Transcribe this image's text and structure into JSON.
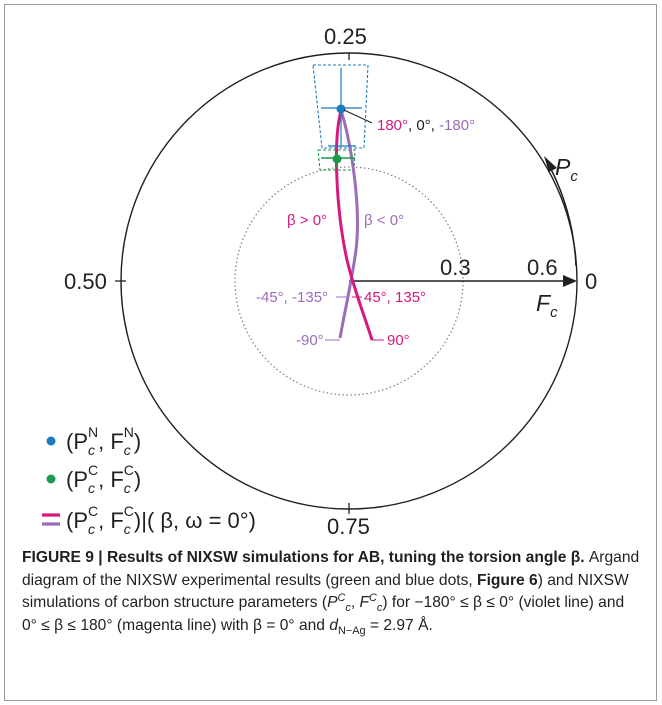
{
  "diagram": {
    "phase_labels": {
      "top": "0.25",
      "left": "0.50",
      "bottom": "0.75",
      "right": "0"
    },
    "radius_labels": {
      "inner": "0.3",
      "outer": "0.6"
    },
    "axis_labels": {
      "phase": "P",
      "phase_sub": "c",
      "amplitude": "F",
      "amplitude_sub": "c"
    },
    "annotations": {
      "top_angles_magenta": "180°",
      "top_angles_black": ", 0°, ",
      "top_angles_violet": "-180°",
      "beta_pos": "β > 0°",
      "beta_neg": "β < 0°",
      "left_angles": "-45°, -135°",
      "right_angles": "45°, 135°",
      "bottom_left_angle": "-90°",
      "bottom_right_angle": "90°"
    },
    "legend": {
      "item1": {
        "text": "(P",
        "sup1": "N",
        "mid": ", F",
        "sup2": "N",
        "end": ")"
      },
      "item2": {
        "text": "(P",
        "sup1": "C",
        "mid": ", F",
        "sup2": "C",
        "end": ")"
      },
      "item3": {
        "text": "(P",
        "sup1": "C",
        "mid": ", F",
        "sup2": "C",
        "end": ")|( β, ω = 0°)"
      },
      "sub": "c"
    },
    "colors": {
      "magenta": "#d6197f",
      "violet": "#9b6cb7",
      "blue": "#1b7bbf",
      "green": "#1c9a4b",
      "black": "#231f20",
      "dotted": "#7f7f7f"
    }
  },
  "caption": {
    "bold": "FIGURE 9 | Results of NIXSW simulations for AB, tuning the torsion angle β.",
    "part1": " Argand diagram of the NIXSW experimental results (green and blue dots, ",
    "figref": "Figure 6",
    "part2": ") and NIXSW simulations of carbon structure parameters (",
    "pc": "P",
    "fc": "F",
    "part3": ") for −180° ≤ β ≤ 0° (violet line) and 0° ≤ β ≤ 180° (magenta line) with β = 0° and ",
    "d": "d",
    "dsub": "N−Ag",
    "part4": " = 2.97 Å."
  }
}
